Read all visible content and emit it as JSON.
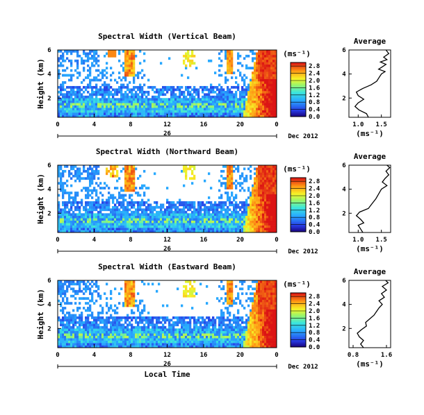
{
  "chart_data": [
    {
      "type": "heatmap",
      "title": "Spectral Width (Vertical Beam)",
      "ylabel": "Height (km)",
      "xlabel": "",
      "x_ticks": [
        "0",
        "4",
        "8",
        "12",
        "16",
        "20",
        "0"
      ],
      "y_ticks": [
        "2",
        "4",
        "6"
      ],
      "xlim": [
        0,
        24
      ],
      "ylim": [
        0.4,
        6
      ],
      "date_day": "26",
      "date_label": "Dec 2012",
      "colorbar": {
        "unit": "(ms⁻¹)",
        "ticks": [
          "0.0",
          "0.4",
          "0.8",
          "1.2",
          "1.6",
          "2.0",
          "2.4",
          "2.8"
        ],
        "range": [
          0.0,
          3.0
        ]
      },
      "average_profile": {
        "title": "Average",
        "xlabel": "(ms⁻¹)",
        "x_ticks": [
          "1.0",
          "1.5"
        ],
        "y_ticks": [
          "2",
          "4",
          "6"
        ],
        "xlim": [
          0.8,
          1.7
        ],
        "points": [
          [
            1.22,
            0.4
          ],
          [
            1.18,
            0.7
          ],
          [
            1.02,
            1.0
          ],
          [
            0.93,
            1.3
          ],
          [
            1.0,
            1.6
          ],
          [
            1.12,
            1.9
          ],
          [
            1.0,
            2.2
          ],
          [
            0.96,
            2.5
          ],
          [
            1.1,
            2.8
          ],
          [
            1.28,
            3.1
          ],
          [
            1.4,
            3.4
          ],
          [
            1.45,
            3.7
          ],
          [
            1.5,
            4.0
          ],
          [
            1.58,
            4.2
          ],
          [
            1.44,
            4.4
          ],
          [
            1.52,
            4.6
          ],
          [
            1.6,
            4.8
          ],
          [
            1.48,
            5.0
          ],
          [
            1.62,
            5.2
          ],
          [
            1.55,
            5.4
          ],
          [
            1.66,
            5.7
          ],
          [
            1.6,
            6.0
          ]
        ]
      }
    },
    {
      "type": "heatmap",
      "title": "Spectral Width (Northward Beam)",
      "ylabel": "Height (km)",
      "xlabel": "",
      "x_ticks": [
        "0",
        "4",
        "8",
        "12",
        "16",
        "20",
        "0"
      ],
      "y_ticks": [
        "2",
        "4",
        "6"
      ],
      "xlim": [
        0,
        24
      ],
      "ylim": [
        0.4,
        6
      ],
      "date_day": "26",
      "date_label": "Dec 2012",
      "colorbar": {
        "unit": "(ms⁻¹)",
        "ticks": [
          "0.0",
          "0.4",
          "0.8",
          "1.2",
          "1.6",
          "2.0",
          "2.4",
          "2.8"
        ],
        "range": [
          0.0,
          3.0
        ]
      },
      "average_profile": {
        "title": "Average",
        "xlabel": "(ms⁻¹)",
        "x_ticks": [
          "1.0",
          "1.5"
        ],
        "y_ticks": [
          "2",
          "4",
          "6"
        ],
        "xlim": [
          0.8,
          1.7
        ],
        "points": [
          [
            1.1,
            0.4
          ],
          [
            1.05,
            0.7
          ],
          [
            1.0,
            1.0
          ],
          [
            1.12,
            1.2
          ],
          [
            1.05,
            1.5
          ],
          [
            0.96,
            1.8
          ],
          [
            1.03,
            2.1
          ],
          [
            1.22,
            2.4
          ],
          [
            1.3,
            2.8
          ],
          [
            1.38,
            3.2
          ],
          [
            1.44,
            3.6
          ],
          [
            1.5,
            4.0
          ],
          [
            1.62,
            4.3
          ],
          [
            1.52,
            4.6
          ],
          [
            1.58,
            4.9
          ],
          [
            1.66,
            5.2
          ],
          [
            1.6,
            5.5
          ],
          [
            1.68,
            5.8
          ],
          [
            1.62,
            6.0
          ]
        ]
      }
    },
    {
      "type": "heatmap",
      "title": "Spectral Width (Eastward Beam)",
      "ylabel": "Height (km)",
      "xlabel": "Local Time",
      "x_ticks": [
        "0",
        "4",
        "8",
        "12",
        "16",
        "20",
        "0"
      ],
      "y_ticks": [
        "2",
        "4",
        "6"
      ],
      "xlim": [
        0,
        24
      ],
      "ylim": [
        0.4,
        6
      ],
      "date_day": "26",
      "date_label": "Dec 2012",
      "colorbar": {
        "unit": "(ms⁻¹)",
        "ticks": [
          "0.0",
          "0.4",
          "0.8",
          "1.2",
          "1.6",
          "2.0",
          "2.4",
          "2.8"
        ],
        "range": [
          0.0,
          3.0
        ]
      },
      "average_profile": {
        "title": "Average",
        "xlabel": "(ms⁻¹)",
        "x_ticks": [
          "0.8",
          "1.6"
        ],
        "y_ticks": [
          "2",
          "4",
          "6"
        ],
        "xlim": [
          0.7,
          1.7
        ],
        "points": [
          [
            1.05,
            0.4
          ],
          [
            0.98,
            0.7
          ],
          [
            1.05,
            1.0
          ],
          [
            0.95,
            1.3
          ],
          [
            0.9,
            1.6
          ],
          [
            1.0,
            1.9
          ],
          [
            1.12,
            2.2
          ],
          [
            1.1,
            2.5
          ],
          [
            1.2,
            2.8
          ],
          [
            1.3,
            3.1
          ],
          [
            1.36,
            3.4
          ],
          [
            1.42,
            3.7
          ],
          [
            1.5,
            4.0
          ],
          [
            1.42,
            4.3
          ],
          [
            1.55,
            4.6
          ],
          [
            1.48,
            4.9
          ],
          [
            1.6,
            5.2
          ],
          [
            1.5,
            5.5
          ],
          [
            1.64,
            5.8
          ],
          [
            1.58,
            6.0
          ]
        ]
      }
    }
  ]
}
